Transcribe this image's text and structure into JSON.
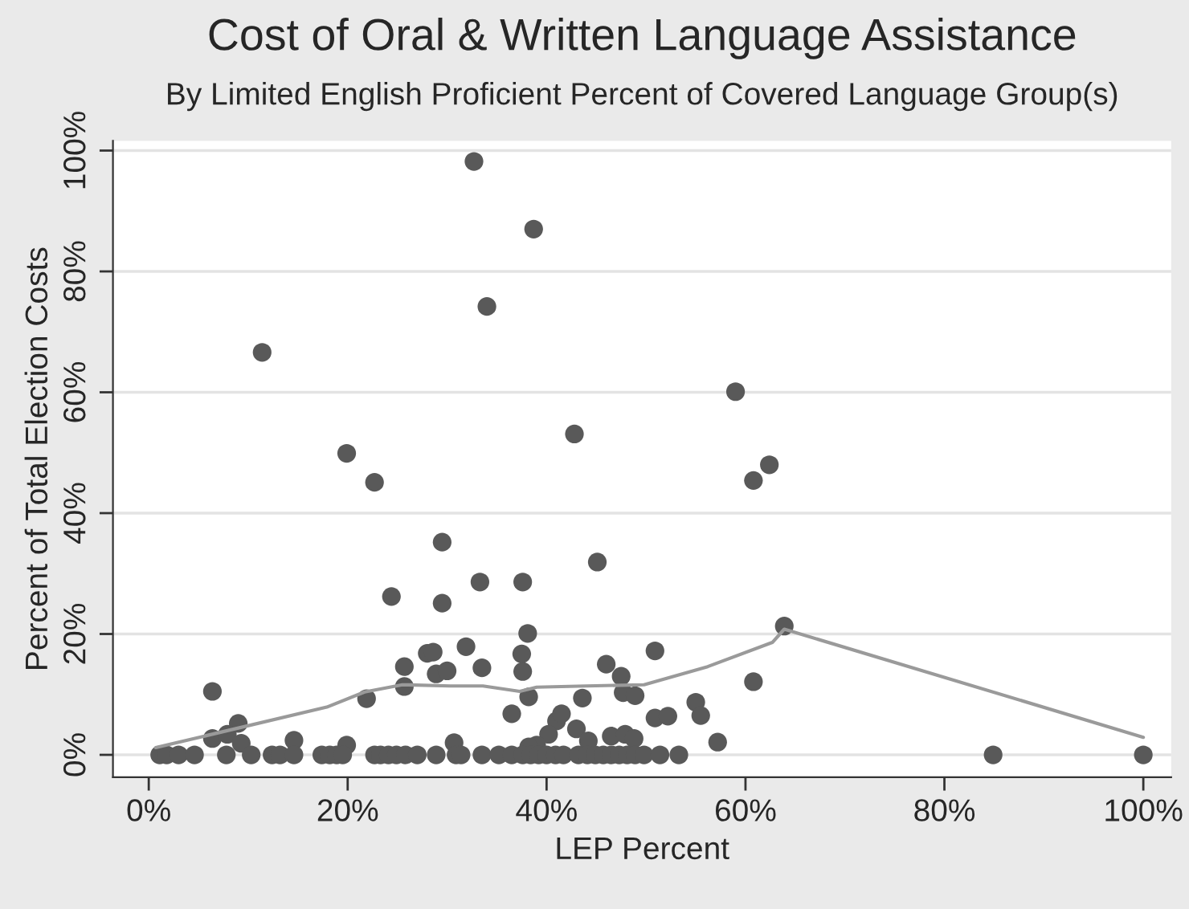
{
  "chart_data": {
    "type": "scatter",
    "title": "Cost of Oral & Written Language Assistance",
    "subtitle": "By Limited English Proficient Percent of Covered Language Group(s)",
    "xlabel": "LEP Percent",
    "ylabel": "Percent of Total Election Costs",
    "series": [
      {
        "marker": "circle",
        "color": "#595959",
        "x": [
          32.7,
          38.7,
          34.0,
          11.4,
          59.0,
          42.8,
          19.9,
          22.7,
          62.4,
          60.8,
          29.5,
          45.1,
          33.3,
          37.6,
          24.4,
          29.5,
          28.0,
          28.6,
          31.9,
          25.7,
          33.5,
          28.9,
          30.0,
          25.7,
          21.9,
          6.4,
          9.0,
          6.4,
          7.9,
          9.3,
          14.6,
          19.9,
          30.7,
          36.5,
          38.1,
          37.5,
          37.6,
          50.9,
          46.0,
          63.9,
          60.8,
          38.2,
          43.6,
          47.5,
          47.7,
          48.9,
          55.0,
          55.5,
          50.9,
          52.2,
          41.0,
          41.5,
          40.2,
          43.0,
          44.2,
          39.0,
          38.2,
          46.5,
          47.9,
          48.8,
          57.2,
          1.1,
          1.8,
          3.0,
          4.6,
          7.8,
          10.3,
          12.4,
          13.2,
          14.6,
          17.4,
          18.2,
          18.9,
          19.5,
          22.7,
          23.3,
          24.1,
          24.9,
          25.8,
          27.0,
          28.9,
          30.9,
          31.4,
          33.5,
          35.2,
          36.5,
          37.6,
          38.4,
          39.2,
          40.0,
          40.9,
          41.7,
          43.2,
          44.1,
          44.9,
          45.7,
          46.5,
          47.3,
          48.1,
          48.9,
          49.8,
          51.4,
          53.3,
          84.9,
          100
        ],
        "values": [
          98.2,
          87.0,
          74.2,
          66.6,
          60.1,
          53.1,
          49.9,
          45.1,
          48.0,
          45.4,
          35.2,
          31.9,
          28.6,
          28.6,
          26.2,
          25.1,
          16.8,
          17.0,
          17.9,
          14.6,
          14.4,
          13.4,
          13.9,
          11.3,
          9.3,
          10.5,
          5.2,
          2.7,
          3.4,
          1.9,
          2.4,
          1.6,
          2.0,
          6.8,
          20.1,
          16.7,
          13.8,
          17.2,
          15.0,
          21.3,
          12.1,
          9.6,
          9.4,
          13.0,
          10.3,
          9.8,
          8.7,
          6.5,
          6.1,
          6.4,
          5.6,
          6.8,
          3.4,
          4.3,
          2.3,
          1.6,
          1.3,
          3.1,
          3.4,
          2.7,
          2.1,
          0,
          0,
          0,
          0,
          0,
          0,
          0,
          0,
          0,
          0,
          0,
          0,
          0,
          0,
          0,
          0,
          0,
          0,
          0,
          0,
          0,
          0,
          0,
          0,
          0,
          0,
          0,
          0,
          0,
          0,
          0,
          0,
          0,
          0,
          0,
          0,
          0,
          0,
          0,
          0,
          0,
          0,
          0,
          0
        ]
      },
      {
        "type": "line",
        "color": "#9a9a9a",
        "x": [
          0.7,
          17.9,
          21.7,
          25.5,
          30.3,
          33.6,
          37.3,
          39.0,
          44.0,
          49.8,
          56.2,
          62.7,
          63.9,
          100
        ],
        "values": [
          1.2,
          7.9,
          10.4,
          11.6,
          11.4,
          11.4,
          10.5,
          11.2,
          11.4,
          11.6,
          14.6,
          18.6,
          20.8,
          2.9
        ]
      }
    ],
    "xlim": [
      -3.6,
      102.8
    ],
    "ylim": [
      -3.7,
      101.6
    ],
    "xticks": [
      {
        "value": 0,
        "label": "0%"
      },
      {
        "value": 20,
        "label": "20%"
      },
      {
        "value": 40,
        "label": "40%"
      },
      {
        "value": 60,
        "label": "60%"
      },
      {
        "value": 80,
        "label": "80%"
      },
      {
        "value": 100,
        "label": "100%"
      }
    ],
    "yticks": [
      {
        "value": 0,
        "label": "0%"
      },
      {
        "value": 20,
        "label": "20%"
      },
      {
        "value": 40,
        "label": "40%"
      },
      {
        "value": 60,
        "label": "60%"
      },
      {
        "value": 80,
        "label": "80%"
      },
      {
        "value": 100,
        "label": "100%"
      }
    ],
    "grid": "y"
  }
}
